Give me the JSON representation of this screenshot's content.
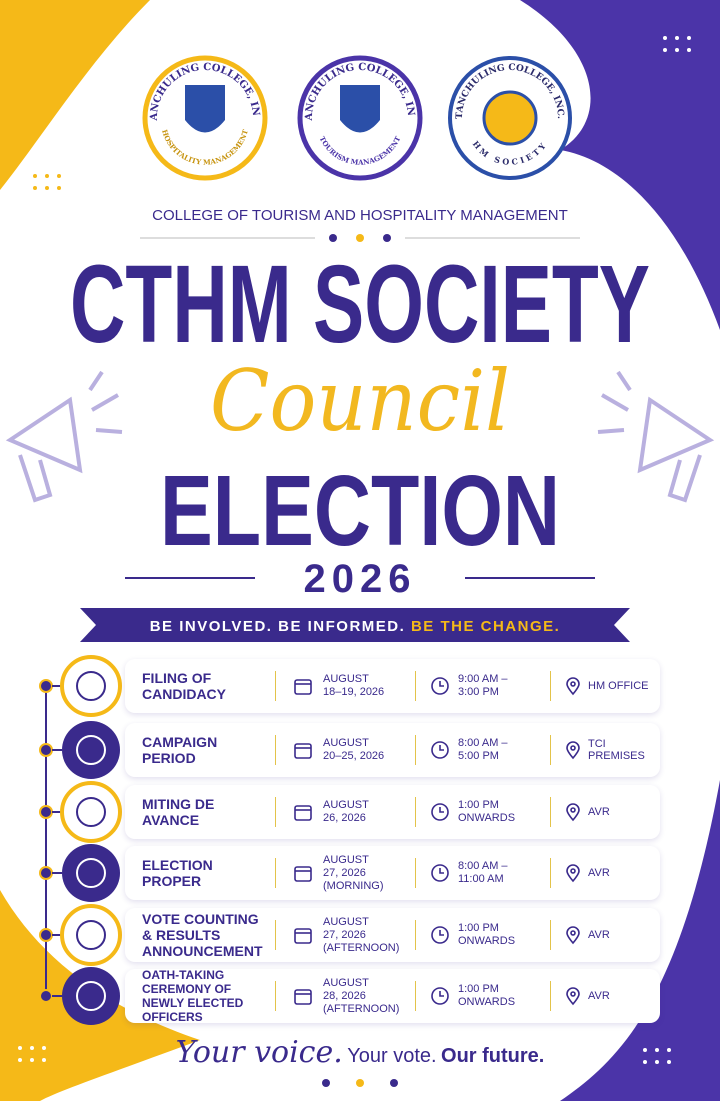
{
  "logos": [
    {
      "top": "TANCHULING COLLEGE, INC.",
      "bottom": "HOSPITALITY MANAGEMENT"
    },
    {
      "top": "TANCHULING COLLEGE, INC.",
      "bottom": "TOURISM MANAGEMENT"
    },
    {
      "top": "TANCHULING COLLEGE, INC.",
      "bottom": "HM SOCIETY"
    }
  ],
  "header": {
    "college": "COLLEGE OF TOURISM AND HOSPITALITY MANAGEMENT",
    "title": "CTHM SOCIETY",
    "script": "Council",
    "subtitle": "ELECTION",
    "year": "2026"
  },
  "banner": {
    "text": "BE INVOLVED. BE INFORMED.",
    "highlight": "BE THE CHANGE."
  },
  "schedule": [
    {
      "event": "FILING OF\nCANDIDACY",
      "date": "AUGUST\n18–19, 2026",
      "time": "9:00 AM –\n3:00 PM",
      "venue": "HM OFFICE"
    },
    {
      "event": "CAMPAIGN\nPERIOD",
      "date": "AUGUST\n20–25, 2026",
      "time": "8:00 AM –\n5:00 PM",
      "venue": "TCI PREMISES"
    },
    {
      "event": "MITING DE\nAVANCE",
      "date": "AUGUST\n26, 2026",
      "time": "1:00 PM\nONWARDS",
      "venue": "AVR"
    },
    {
      "event": "ELECTION\nPROPER",
      "date": "AUGUST\n27, 2026\n(MORNING)",
      "time": "8:00 AM –\n11:00 AM",
      "venue": "AVR"
    },
    {
      "event": "VOTE COUNTING\n& RESULTS\nANNOUNCEMENT",
      "date": "AUGUST\n27, 2026\n(AFTERNOON)",
      "time": "1:00 PM\nONWARDS",
      "venue": "AVR"
    },
    {
      "event": "OATH-TAKING\nCEREMONY OF\nNEWLY ELECTED OFFICERS",
      "date": "AUGUST\n28, 2026\n(AFTERNOON)",
      "time": "1:00 PM\nONWARDS",
      "venue": "AVR"
    }
  ],
  "footer": {
    "script": "Your voice.",
    "middle": "Your vote.",
    "bold": "Our future."
  }
}
